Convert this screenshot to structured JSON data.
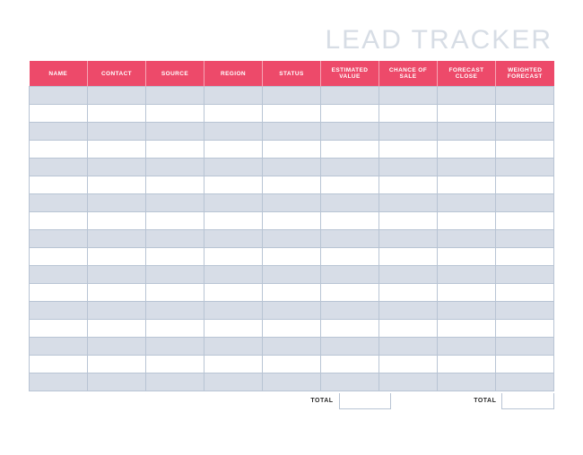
{
  "title": "LEAD TRACKER",
  "title_color": "#d7dde5",
  "header_bg": "#ed4a6a",
  "row_alt_bg": "#d7dde7",
  "row_bg": "#ffffff",
  "border_color": "#b8c4d4",
  "columns": [
    {
      "label": "NAME"
    },
    {
      "label": "CONTACT"
    },
    {
      "label": "SOURCE"
    },
    {
      "label": "REGION"
    },
    {
      "label": "STATUS"
    },
    {
      "label": "ESTIMATED VALUE"
    },
    {
      "label": "CHANCE OF SALE"
    },
    {
      "label": "FORECAST CLOSE"
    },
    {
      "label": "WEIGHTED FORECAST"
    }
  ],
  "num_rows": 17,
  "footer": {
    "total1_label": "TOTAL",
    "total1_value": "",
    "total2_label": "TOTAL",
    "total2_value": ""
  }
}
